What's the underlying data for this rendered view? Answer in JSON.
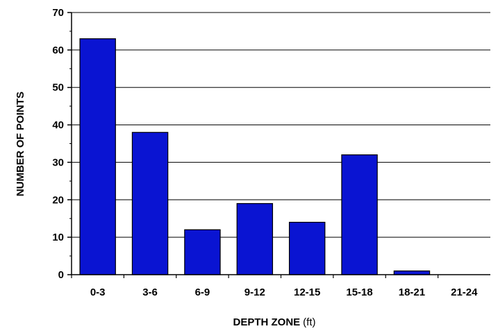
{
  "chart_data": {
    "type": "bar",
    "categories": [
      "0-3",
      "3-6",
      "6-9",
      "9-12",
      "12-15",
      "15-18",
      "18-21",
      "21-24"
    ],
    "values": [
      63,
      38,
      12,
      19,
      14,
      32,
      1,
      0
    ],
    "title": "",
    "xlabel": "DEPTH ZONE",
    "xlabel_unit": "(ft)",
    "ylabel": "NUMBER OF POINTS",
    "ylim": [
      0,
      70
    ],
    "yticks": [
      0,
      10,
      20,
      30,
      40,
      50,
      60,
      70
    ],
    "grid": true,
    "legend": false,
    "bar_color": "#0a14d2",
    "bar_outline_color": "#000000"
  }
}
